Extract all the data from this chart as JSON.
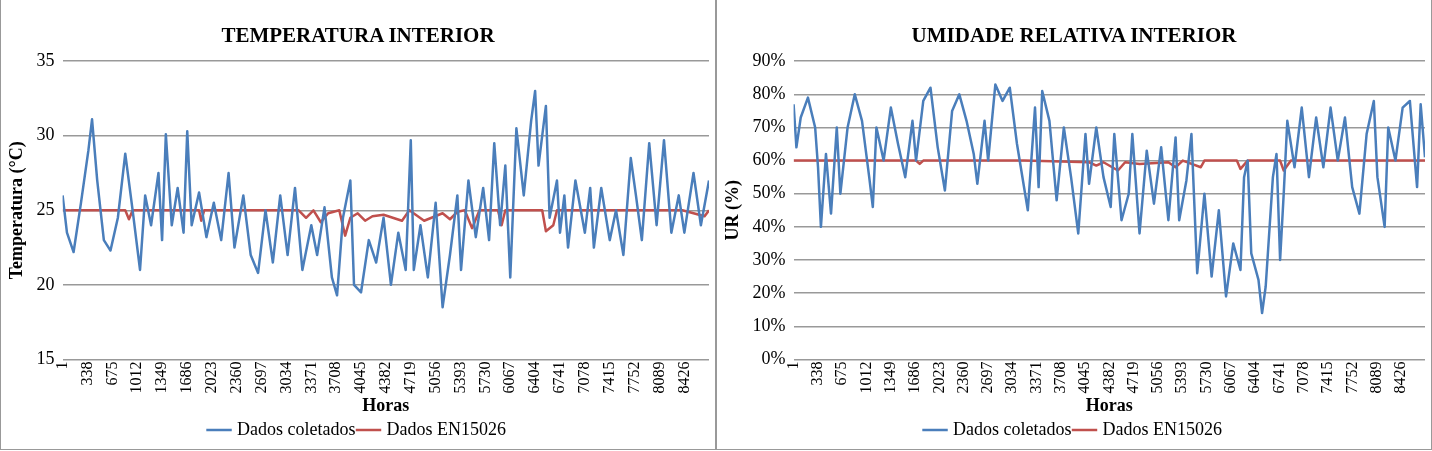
{
  "chart_data": [
    {
      "type": "line",
      "title": "TEMPERATURA INTERIOR",
      "xlabel": "Horas",
      "ylabel": "Temperatura (°C)",
      "xlim": [
        1,
        8760
      ],
      "xticks": [
        1,
        338,
        675,
        1012,
        1349,
        1686,
        2023,
        2360,
        2697,
        3034,
        3371,
        3708,
        4045,
        4382,
        4719,
        5056,
        5393,
        5730,
        6067,
        6404,
        6741,
        7078,
        7415,
        7752,
        8089,
        8426
      ],
      "ylim": [
        15,
        35
      ],
      "yticks": [
        15,
        20,
        25,
        30,
        35
      ],
      "grid": "y",
      "legend": "bottom",
      "marker": "none",
      "series": [
        {
          "name": "Dados coletados",
          "color": "#4a7ebb",
          "x": [
            1,
            60,
            150,
            250,
            350,
            400,
            470,
            560,
            650,
            750,
            850,
            950,
            1050,
            1120,
            1200,
            1300,
            1349,
            1400,
            1480,
            1560,
            1640,
            1690,
            1750,
            1850,
            1950,
            2050,
            2150,
            2250,
            2330,
            2450,
            2550,
            2650,
            2750,
            2850,
            2950,
            3050,
            3150,
            3250,
            3371,
            3450,
            3550,
            3650,
            3720,
            3800,
            3900,
            3950,
            4045,
            4150,
            4250,
            4350,
            4450,
            4550,
            4650,
            4719,
            4760,
            4850,
            4950,
            5056,
            5150,
            5250,
            5350,
            5400,
            5500,
            5600,
            5700,
            5780,
            5850,
            5930,
            6000,
            6067,
            6150,
            6250,
            6350,
            6404,
            6450,
            6550,
            6600,
            6700,
            6741,
            6800,
            6850,
            6950,
            7078,
            7150,
            7200,
            7300,
            7415,
            7500,
            7600,
            7700,
            7770,
            7850,
            7950,
            8050,
            8150,
            8250,
            8350,
            8426,
            8550,
            8650,
            8760
          ],
          "values": [
            26,
            23.5,
            22.2,
            25.5,
            29,
            31.1,
            27,
            23,
            22.3,
            24.5,
            28.8,
            25,
            21,
            26,
            24,
            27.5,
            23,
            30.1,
            24,
            26.5,
            23.5,
            30.3,
            24,
            26.2,
            23.2,
            25.5,
            23,
            27.5,
            22.5,
            26,
            22,
            20.8,
            25,
            21.5,
            26,
            22,
            26.5,
            21,
            24,
            22,
            25.2,
            20.5,
            19.3,
            24.5,
            27,
            20,
            19.5,
            23,
            21.5,
            24.5,
            20,
            23.5,
            21,
            29.7,
            21,
            24,
            20.5,
            25.5,
            18.5,
            22,
            26,
            21,
            27,
            23.2,
            26.5,
            23,
            29.5,
            24,
            28,
            20.5,
            30.5,
            26,
            31,
            33,
            28,
            32,
            24.5,
            27,
            23.5,
            26,
            22.5,
            27,
            23.5,
            26.5,
            22.5,
            26.5,
            23,
            25,
            22,
            28.5,
            26,
            23,
            29.5,
            24,
            29.7,
            23.5,
            26,
            23.5,
            27.5,
            24,
            27
          ]
        },
        {
          "name": "Dados EN15026",
          "color": "#c0504d",
          "x": [
            1,
            850,
            900,
            950,
            1850,
            1880,
            1920,
            3200,
            3300,
            3400,
            3500,
            3600,
            3750,
            3830,
            3900,
            4000,
            4100,
            4200,
            4350,
            4600,
            4700,
            4900,
            5000,
            5150,
            5250,
            5350,
            5450,
            5550,
            5650,
            5900,
            5950,
            6000,
            6500,
            6550,
            6650,
            6700,
            8400,
            8700,
            8760
          ],
          "values": [
            25,
            25,
            24.4,
            25,
            25,
            24.3,
            25,
            25,
            24.5,
            25,
            24.2,
            24.8,
            25,
            23.3,
            24.5,
            24.8,
            24.3,
            24.6,
            24.7,
            24.3,
            25,
            24.3,
            24.5,
            24.8,
            24.4,
            24.9,
            25,
            23.8,
            25,
            25,
            24,
            25,
            25,
            23.6,
            24,
            25,
            25,
            24.6,
            25
          ]
        }
      ]
    },
    {
      "type": "line",
      "title": "UMIDADE RELATIVA INTERIOR",
      "xlabel": "Horas",
      "ylabel": "UR (%)",
      "xlim": [
        1,
        8760
      ],
      "xticks": [
        1,
        338,
        675,
        1012,
        1349,
        1686,
        2023,
        2360,
        2697,
        3034,
        3371,
        3708,
        4045,
        4382,
        4719,
        5056,
        5393,
        5730,
        6067,
        6404,
        6741,
        7078,
        7415,
        7752,
        8089,
        8426
      ],
      "ylim": [
        0,
        90
      ],
      "yticks": [
        {
          "value": 0,
          "label": "0%"
        },
        {
          "value": 10,
          "label": "10%"
        },
        {
          "value": 20,
          "label": "20%"
        },
        {
          "value": 30,
          "label": "30%"
        },
        {
          "value": 40,
          "label": "40%"
        },
        {
          "value": 50,
          "label": "50%"
        },
        {
          "value": 60,
          "label": "60%"
        },
        {
          "value": 70,
          "label": "70%"
        },
        {
          "value": 80,
          "label": "80%"
        },
        {
          "value": 90,
          "label": "90%"
        }
      ],
      "grid": "y",
      "legend": "bottom",
      "marker": "none",
      "series": [
        {
          "name": "Dados coletados",
          "color": "#4a7ebb",
          "x": [
            1,
            40,
            100,
            200,
            300,
            340,
            380,
            450,
            520,
            600,
            650,
            750,
            850,
            950,
            1050,
            1100,
            1150,
            1250,
            1350,
            1450,
            1550,
            1650,
            1700,
            1800,
            1900,
            2000,
            2100,
            2200,
            2300,
            2400,
            2500,
            2550,
            2650,
            2700,
            2800,
            2900,
            3000,
            3100,
            3250,
            3350,
            3400,
            3450,
            3550,
            3650,
            3750,
            3850,
            3950,
            4050,
            4100,
            4200,
            4300,
            4400,
            4450,
            4550,
            4650,
            4700,
            4800,
            4900,
            5000,
            5100,
            5200,
            5300,
            5350,
            5450,
            5520,
            5600,
            5700,
            5800,
            5900,
            6000,
            6100,
            6200,
            6250,
            6300,
            6350,
            6450,
            6500,
            6550,
            6650,
            6700,
            6750,
            6800,
            6850,
            6950,
            7050,
            7150,
            7250,
            7350,
            7450,
            7550,
            7650,
            7750,
            7850,
            7950,
            8050,
            8100,
            8200,
            8250,
            8350,
            8450,
            8550,
            8650,
            8700,
            8760
          ],
          "values": [
            77,
            64,
            73,
            79,
            70,
            58,
            40,
            62,
            44,
            70,
            50,
            70,
            80,
            72,
            55,
            46,
            70,
            60,
            76,
            65,
            55,
            72,
            60,
            78,
            82,
            64,
            51,
            75,
            80,
            72,
            62,
            53,
            72,
            60,
            83,
            78,
            82,
            65,
            45,
            76,
            52,
            81,
            72,
            48,
            70,
            55,
            38,
            68,
            53,
            70,
            55,
            46,
            68,
            42,
            50,
            68,
            38,
            63,
            47,
            64,
            42,
            67,
            42,
            54,
            68,
            26,
            50,
            25,
            45,
            19,
            35,
            27,
            55,
            60,
            32,
            24,
            14,
            22,
            55,
            62,
            30,
            50,
            72,
            58,
            76,
            55,
            73,
            58,
            76,
            60,
            73,
            52,
            44,
            68,
            78,
            55,
            40,
            70,
            60,
            76,
            78,
            52,
            77,
            61
          ]
        },
        {
          "name": "Dados EN15026",
          "color": "#c0504d",
          "x": [
            1,
            1700,
            1750,
            1800,
            3200,
            4100,
            4200,
            4300,
            4500,
            4600,
            4800,
            5200,
            5300,
            5400,
            5650,
            5700,
            6150,
            6200,
            6300,
            6750,
            6800,
            6900,
            8760
          ],
          "values": [
            60,
            60,
            59,
            60,
            60,
            59.5,
            58.5,
            59.5,
            57,
            59.5,
            59,
            59.5,
            58,
            60,
            58,
            60,
            60,
            57.5,
            60,
            60,
            57,
            60,
            60
          ]
        }
      ]
    }
  ]
}
